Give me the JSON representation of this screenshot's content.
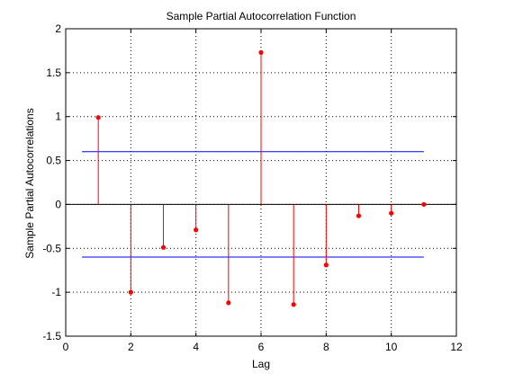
{
  "chart_data": {
    "type": "stem",
    "title": "Sample Partial Autocorrelation Function",
    "xlabel": "Lag",
    "ylabel": "Sample Partial Autocorrelations",
    "xlim": [
      0,
      12
    ],
    "ylim": [
      -1.5,
      2
    ],
    "xticks": [
      0,
      2,
      4,
      6,
      8,
      10,
      12
    ],
    "xtick_labels": [
      "0",
      "2",
      "4",
      "6",
      "8",
      "10",
      "12"
    ],
    "yticks": [
      -1.5,
      -1,
      -0.5,
      0,
      0.5,
      1,
      1.5,
      2
    ],
    "ytick_labels": [
      "-1.5",
      "-1",
      "-0.5",
      "0",
      "0.5",
      "1",
      "1.5",
      "2"
    ],
    "grid": true,
    "x": [
      1,
      2,
      3,
      4,
      5,
      6,
      7,
      8,
      9,
      10,
      11
    ],
    "values": [
      0.99,
      -1.0,
      -0.49,
      -0.29,
      -1.12,
      1.73,
      -1.14,
      -0.69,
      -0.13,
      -0.1,
      0.0
    ],
    "confidence_bounds": {
      "upper": 0.6,
      "lower": -0.6,
      "x_range": [
        0.5,
        11
      ]
    },
    "colors": {
      "stem": "#ff0000",
      "bounds": "#0000ff",
      "axis": "#000000",
      "grid": "#000000"
    }
  }
}
